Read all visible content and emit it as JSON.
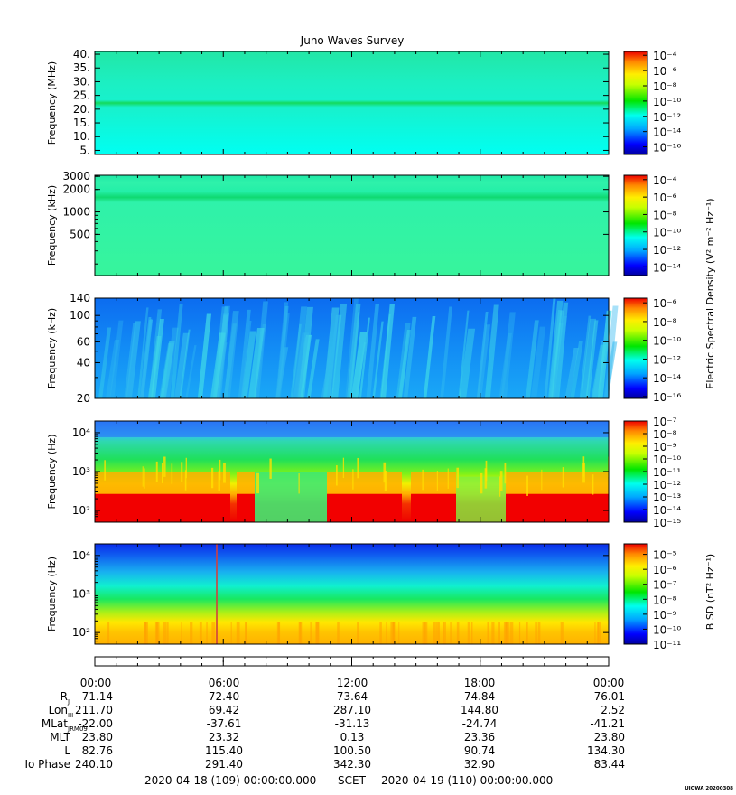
{
  "title": "Juno Waves Survey",
  "stamp": "UIOWA 20200308",
  "colorbar_labels": {
    "electric": "Electric Spectral Density (V² m⁻² Hz⁻¹)",
    "magnetic": "B SD (nT² Hz⁻¹)"
  },
  "chart_data": [
    {
      "type": "heatmap",
      "panel": "mhz",
      "ylabel": "Frequency (MHz)",
      "yscale": "linear",
      "ylim": [
        3.5,
        41
      ],
      "yticks": [
        {
          "v": 40,
          "label": "40."
        },
        {
          "v": 35,
          "label": "35."
        },
        {
          "v": 30,
          "label": "30."
        },
        {
          "v": 25,
          "label": "25."
        },
        {
          "v": 20,
          "label": "20."
        },
        {
          "v": 15,
          "label": "15."
        },
        {
          "v": 10,
          "label": "10."
        },
        {
          "v": 5,
          "label": "5."
        }
      ],
      "colorbar": {
        "ticks": [
          {
            "exp": -4,
            "label": "10⁻⁴"
          },
          {
            "exp": -6,
            "label": "10⁻⁶"
          },
          {
            "exp": -8,
            "label": "10⁻⁸"
          },
          {
            "exp": -10,
            "label": "10⁻¹⁰"
          },
          {
            "exp": -12,
            "label": "10⁻¹²"
          },
          {
            "exp": -14,
            "label": "10⁻¹⁴"
          },
          {
            "exp": -16,
            "label": "10⁻¹⁶"
          }
        ],
        "range": [
          -17,
          -3.5
        ]
      }
    },
    {
      "type": "heatmap",
      "panel": "khz-high",
      "ylabel": "Frequency (kHz)",
      "yscale": "log",
      "ylim": [
        140,
        3100
      ],
      "yticks": [
        {
          "v": 3000,
          "label": "3000"
        },
        {
          "v": 2000,
          "label": "2000"
        },
        {
          "v": 1000,
          "label": "1000"
        },
        {
          "v": 500,
          "label": "500"
        }
      ],
      "colorbar": {
        "ticks": [
          {
            "exp": -4,
            "label": "10⁻⁴"
          },
          {
            "exp": -6,
            "label": "10⁻⁶"
          },
          {
            "exp": -8,
            "label": "10⁻⁸"
          },
          {
            "exp": -10,
            "label": "10⁻¹⁰"
          },
          {
            "exp": -12,
            "label": "10⁻¹²"
          },
          {
            "exp": -14,
            "label": "10⁻¹⁴"
          }
        ],
        "range": [
          -15,
          -3.5
        ]
      }
    },
    {
      "type": "heatmap",
      "panel": "khz-low",
      "ylabel": "Frequency (kHz)",
      "yscale": "log",
      "ylim": [
        20,
        140
      ],
      "yticks": [
        {
          "v": 140,
          "label": "140"
        },
        {
          "v": 100,
          "label": "100"
        },
        {
          "v": 60,
          "label": "60"
        },
        {
          "v": 40,
          "label": "40"
        },
        {
          "v": 20,
          "label": "20"
        }
      ],
      "colorbar": {
        "ticks": [
          {
            "exp": -6,
            "label": "10⁻⁶"
          },
          {
            "exp": -8,
            "label": "10⁻⁸"
          },
          {
            "exp": -10,
            "label": "10⁻¹⁰"
          },
          {
            "exp": -12,
            "label": "10⁻¹²"
          },
          {
            "exp": -14,
            "label": "10⁻¹⁴"
          },
          {
            "exp": -16,
            "label": "10⁻¹⁶"
          }
        ],
        "range": [
          -16.2,
          -5.5
        ]
      }
    },
    {
      "type": "heatmap",
      "panel": "hz-electric",
      "ylabel": "Frequency (Hz)",
      "yscale": "log",
      "ylim": [
        50,
        20000
      ],
      "yticks": [
        {
          "v": 10000,
          "label": "10⁴"
        },
        {
          "v": 1000,
          "label": "10³"
        },
        {
          "v": 100,
          "label": "10²"
        }
      ],
      "colorbar": {
        "ticks": [
          {
            "exp": -7,
            "label": "10⁻⁷"
          },
          {
            "exp": -8,
            "label": "10⁻⁸"
          },
          {
            "exp": -9,
            "label": "10⁻⁹"
          },
          {
            "exp": -10,
            "label": "10⁻¹⁰"
          },
          {
            "exp": -11,
            "label": "10⁻¹¹"
          },
          {
            "exp": -12,
            "label": "10⁻¹²"
          },
          {
            "exp": -13,
            "label": "10⁻¹³"
          },
          {
            "exp": -14,
            "label": "10⁻¹⁴"
          },
          {
            "exp": -15,
            "label": "10⁻¹⁵"
          }
        ],
        "range": [
          -15,
          -7
        ]
      }
    },
    {
      "type": "heatmap",
      "panel": "hz-magnetic",
      "ylabel": "Frequency (Hz)",
      "yscale": "log",
      "ylim": [
        50,
        20000
      ],
      "yticks": [
        {
          "v": 10000,
          "label": "10⁴"
        },
        {
          "v": 1000,
          "label": "10³"
        },
        {
          "v": 100,
          "label": "10²"
        }
      ],
      "colorbar": {
        "ticks": [
          {
            "exp": -5,
            "label": "10⁻⁵"
          },
          {
            "exp": -6,
            "label": "10⁻⁶"
          },
          {
            "exp": -7,
            "label": "10⁻⁷"
          },
          {
            "exp": -8,
            "label": "10⁻⁸"
          },
          {
            "exp": -9,
            "label": "10⁻⁹"
          },
          {
            "exp": -10,
            "label": "10⁻¹⁰"
          },
          {
            "exp": -11,
            "label": "10⁻¹¹"
          }
        ],
        "range": [
          -11,
          -4.3
        ]
      }
    }
  ],
  "time_axis": {
    "ticks": [
      "00:00",
      "06:00",
      "12:00",
      "18:00",
      "00:00"
    ]
  },
  "ephemeris": {
    "rows": [
      {
        "label": "R",
        "sub": "J",
        "values": [
          "71.14",
          "72.40",
          "73.64",
          "74.84",
          "76.01"
        ]
      },
      {
        "label": "Lon",
        "sub": "III",
        "values": [
          "211.70",
          "69.42",
          "287.10",
          "144.80",
          "2.52"
        ]
      },
      {
        "label": "MLat",
        "sub": "JRM09",
        "values": [
          "-22.00",
          "-37.61",
          "-31.13",
          "-24.74",
          "-41.21"
        ]
      },
      {
        "label": "MLT",
        "sub": "",
        "values": [
          "23.80",
          "23.32",
          "0.13",
          "23.36",
          "23.80"
        ]
      },
      {
        "label": "L",
        "sub": "",
        "values": [
          "82.76",
          "115.40",
          "100.50",
          "90.74",
          "134.30"
        ]
      },
      {
        "label": "Io Phase",
        "sub": "",
        "values": [
          "240.10",
          "291.40",
          "342.30",
          "32.90",
          "83.44"
        ]
      }
    ]
  },
  "footer": {
    "start": "2020-04-18 (109) 00:00:00.000",
    "scet": "SCET",
    "end": "2020-04-19 (110) 00:00:00.000"
  }
}
